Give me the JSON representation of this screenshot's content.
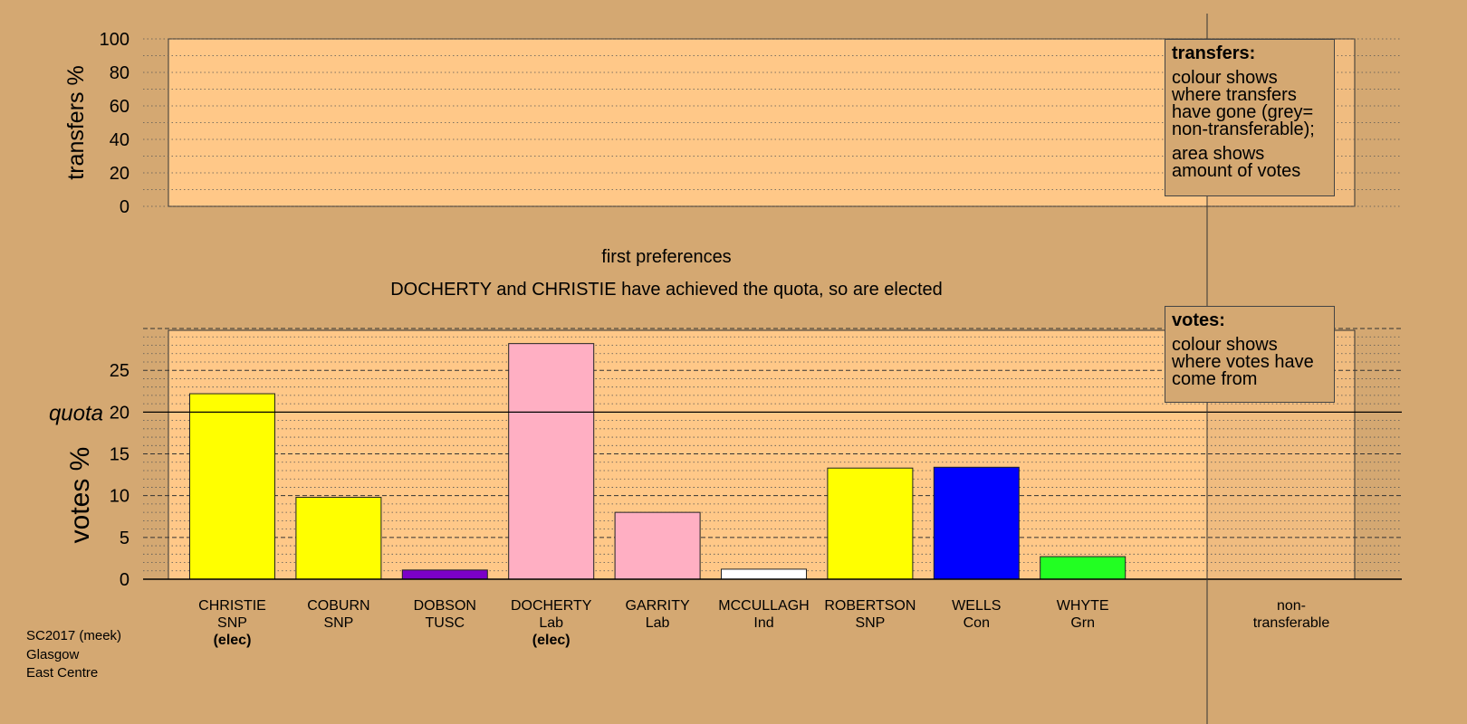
{
  "chart_data": [
    {
      "type": "bar",
      "ylabel": "transfers %",
      "ylim": [
        0,
        100
      ],
      "yticks": [
        0,
        20,
        40,
        60,
        80,
        100
      ],
      "series": [],
      "legend": {
        "title": "transfers:",
        "lines": [
          "colour shows where transfers have gone (grey= non-transferable);",
          "area shows amount of votes"
        ]
      }
    },
    {
      "type": "bar",
      "title": "first preferences",
      "subtitle": "DOCHERTY and CHRISTIE have achieved the quota, so are elected",
      "ylabel": "votes %",
      "ylim": [
        0,
        30
      ],
      "yticks": [
        0,
        5,
        10,
        15,
        20,
        25
      ],
      "quota": {
        "value": 20,
        "label": "quota"
      },
      "categories": [
        {
          "name": "CHRISTIE",
          "party": "SNP",
          "status": "(elec)",
          "value": 22.2,
          "color": "#FFFF00"
        },
        {
          "name": "COBURN",
          "party": "SNP",
          "status": "",
          "value": 9.8,
          "color": "#FFFF00"
        },
        {
          "name": "DOBSON",
          "party": "TUSC",
          "status": "",
          "value": 1.1,
          "color": "#7B00C8"
        },
        {
          "name": "DOCHERTY",
          "party": "Lab",
          "status": "(elec)",
          "value": 28.2,
          "color": "#FFAFC3"
        },
        {
          "name": "GARRITY",
          "party": "Lab",
          "status": "",
          "value": 8.0,
          "color": "#FFAFC3"
        },
        {
          "name": "MCCULLAGH",
          "party": "Ind",
          "status": "",
          "value": 1.2,
          "color": "#FFFFFF"
        },
        {
          "name": "ROBERTSON",
          "party": "SNP",
          "status": "",
          "value": 13.3,
          "color": "#FFFF00"
        },
        {
          "name": "WELLS",
          "party": "Con",
          "status": "",
          "value": 13.4,
          "color": "#0000FF"
        },
        {
          "name": "WHYTE",
          "party": "Grn",
          "status": "",
          "value": 2.7,
          "color": "#22FF22"
        }
      ],
      "extra_category": {
        "line1": "non-",
        "line2": "transferable",
        "value": 0
      },
      "legend": {
        "title": "votes:",
        "lines": [
          "colour shows where votes have come from"
        ]
      }
    }
  ],
  "footer": {
    "line1": "SC2017 (meek)",
    "line2": "Glasgow",
    "line3": "East Centre"
  }
}
